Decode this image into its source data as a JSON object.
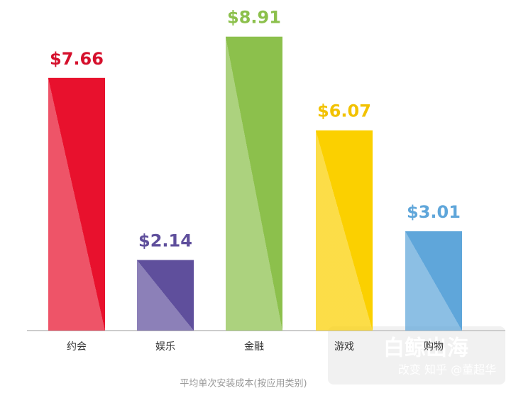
{
  "chart_data": {
    "type": "bar",
    "x_label": "平均单次安装成本(按应用类别)",
    "categories": [
      "约会",
      "娱乐",
      "金融",
      "游戏",
      "购物"
    ],
    "values": [
      7.66,
      2.14,
      8.91,
      6.07,
      3.01
    ],
    "value_labels": [
      "$7.66",
      "$2.14",
      "$8.91",
      "$6.07",
      "$3.01"
    ],
    "colors": [
      "#e8112d",
      "#5f4f9c",
      "#8cc04c",
      "#fbd000",
      "#5fa6da"
    ],
    "label_colors": [
      "#d5102c",
      "#5f4f9c",
      "#8cc04c",
      "#f2c200",
      "#5fa6da"
    ],
    "ylim": [
      0,
      10
    ],
    "watermarks": [
      "白鲸出海",
      "改变 知乎 @董超华"
    ]
  }
}
